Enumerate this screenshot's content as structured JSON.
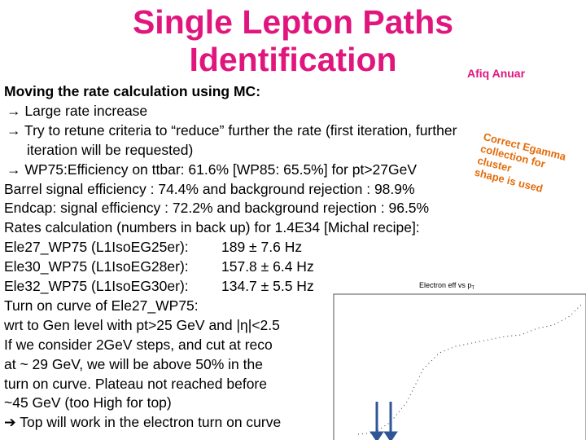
{
  "header": {
    "title": [
      "Single Lepton Paths",
      "Identification"
    ],
    "author": "Afiq Anuar"
  },
  "body": {
    "heading": "Moving the rate calculation using MC:",
    "points": [
      "Large rate increase",
      "Try to retune criteria to “reduce” further the rate (first iteration, further",
      "iteration will be requested)",
      "WP75:Efficiency on ttbar: 61.6% [WP85: 65.5%] for pt>27GeV"
    ],
    "lines": [
      "Barrel signal efficiency : 74.4% and background rejection : 98.9%",
      "Endcap: signal efficiency : 72.2% and background rejection : 96.5%",
      "Rates calculation (numbers in back up) for 1.4E34 [Michal recipe]:"
    ],
    "rates": [
      {
        "path": "Ele27_WP75 (L1IsoEG25er):",
        "rate": "189 ± 7.6 Hz"
      },
      {
        "path": "Ele30_WP75 (L1IsoEG28er):",
        "rate": "157.8 ± 6.4 Hz"
      },
      {
        "path": "Ele32_WP75 (L1IsoEG30er):",
        "rate": "134.7 ± 5.5 Hz"
      }
    ],
    "turn_on": [
      "Turn on curve of Ele27_WP75:",
      "wrt to Gen level with pt>25 GeV and |η|<2.5",
      "If we consider 2GeV steps, and cut at reco",
      "at ~ 29 GeV, we will be above 50% in the",
      "turn on curve. Plateau not reached before",
      "~45 GeV (too High for top)"
    ],
    "conclusion": "Top will work in the electron turn on curve"
  },
  "note": [
    "Correct Egamma",
    "collection for cluster",
    "shape is used"
  ],
  "plot": {
    "title": "Electron eff vs p",
    "title_sub": "T"
  }
}
